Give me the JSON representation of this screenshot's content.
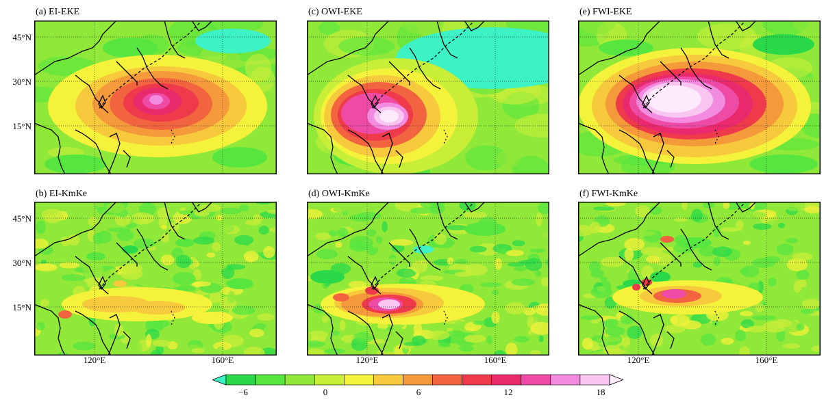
{
  "panels": [
    {
      "id": "a",
      "title": "(a) EI-EKE",
      "field": "eke_ei"
    },
    {
      "id": "b",
      "title": "(b) EI-KmKe",
      "field": "kmke_ei"
    },
    {
      "id": "c",
      "title": "(c) OWI-EKE",
      "field": "eke_owi"
    },
    {
      "id": "d",
      "title": "(d) OWI-KmKe",
      "field": "kmke_owi"
    },
    {
      "id": "e",
      "title": "(e) FWI-EKE",
      "field": "eke_fwi"
    },
    {
      "id": "f",
      "title": "(f) FWI-KmKe",
      "field": "kmke_fwi"
    }
  ],
  "axes": {
    "lat_ticks": [
      "45°N",
      "30°N",
      "15°N"
    ],
    "lon_ticks": [
      "120°E",
      "160°E"
    ]
  },
  "colorbar": {
    "ticks": [
      "−6",
      "0",
      "6",
      "12",
      "18"
    ],
    "colors": [
      "#3df2c4",
      "#29d94a",
      "#57e640",
      "#90e838",
      "#c8ee38",
      "#f4f23a",
      "#f7c93c",
      "#f59a3a",
      "#f26440",
      "#ee3a4a",
      "#ea2a6c",
      "#ee4ba6",
      "#f38ce0",
      "#f9c6f2",
      "#fdeafc"
    ]
  }
}
